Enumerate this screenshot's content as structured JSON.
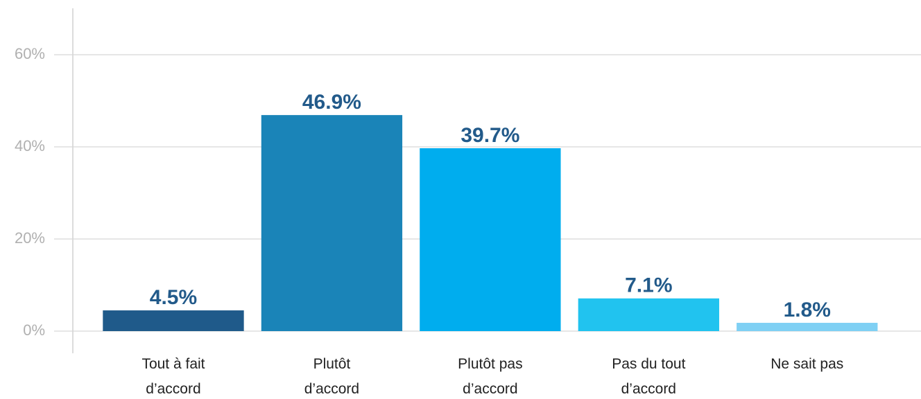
{
  "chart_data": {
    "type": "bar",
    "categories": [
      "Tout à fait d’accord",
      "Plutôt d’accord",
      "Plutôt pas d’accord",
      "Pas du tout d’accord",
      "Ne sait pas"
    ],
    "values": [
      4.5,
      46.9,
      39.7,
      7.1,
      1.8
    ],
    "value_labels": [
      "4.5%",
      "46.9%",
      "39.7%",
      "7.1%",
      "1.8%"
    ],
    "colors": [
      "#1f5a8a",
      "#1a84b8",
      "#00adee",
      "#21c3ef",
      "#7fd0f4"
    ],
    "ylim": [
      0,
      70
    ],
    "yticks": [
      {
        "value": 0,
        "label": "0%"
      },
      {
        "value": 20,
        "label": "20%"
      },
      {
        "value": 40,
        "label": "40%"
      },
      {
        "value": 60,
        "label": "60%"
      }
    ],
    "grid": true
  }
}
